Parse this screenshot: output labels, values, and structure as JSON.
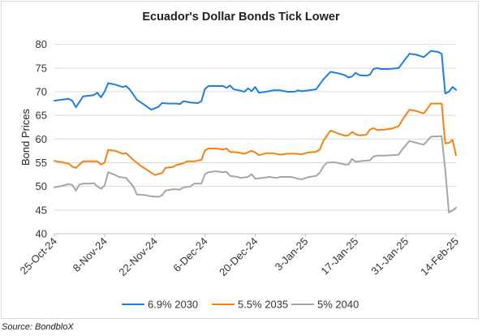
{
  "chart_data": {
    "type": "line",
    "title": "Ecuador's Dollar Bonds Tick Lower",
    "xlabel": "",
    "ylabel": "Bond Prices",
    "ylim": [
      40,
      82
    ],
    "yticks": [
      40,
      45,
      50,
      55,
      60,
      65,
      70,
      75,
      80
    ],
    "xlim": [
      "2024-10-25",
      "2025-02-14"
    ],
    "xticks": [
      "25-Oct-24",
      "8-Nov-24",
      "22-Nov-24",
      "6-Dec-24",
      "20-Dec-24",
      "3-Jan-25",
      "17-Jan-25",
      "31-Jan-25",
      "14-Feb-25"
    ],
    "grid": true,
    "legend": "bottom",
    "series": [
      {
        "name": "6.9% 2030",
        "color": "#1f7fe0",
        "points": [
          [
            "2024-10-25",
            68.1
          ],
          [
            "2024-10-27",
            68.3
          ],
          [
            "2024-10-29",
            68.5
          ],
          [
            "2024-10-30",
            68.1
          ],
          [
            "2024-10-31",
            66.7
          ],
          [
            "2024-11-02",
            69.0
          ],
          [
            "2024-11-04",
            69.2
          ],
          [
            "2024-11-05",
            69.3
          ],
          [
            "2024-11-06",
            69.8
          ],
          [
            "2024-11-07",
            68.8
          ],
          [
            "2024-11-08",
            70.0
          ],
          [
            "2024-11-09",
            71.8
          ],
          [
            "2024-11-11",
            71.5
          ],
          [
            "2024-11-13",
            71.0
          ],
          [
            "2024-11-14",
            71.2
          ],
          [
            "2024-11-15",
            70.5
          ],
          [
            "2024-11-17",
            68.3
          ],
          [
            "2024-11-19",
            67.3
          ],
          [
            "2024-11-21",
            66.2
          ],
          [
            "2024-11-23",
            66.8
          ],
          [
            "2024-11-24",
            67.6
          ],
          [
            "2024-11-26",
            67.5
          ],
          [
            "2024-11-28",
            67.5
          ],
          [
            "2024-11-29",
            67.4
          ],
          [
            "2024-11-30",
            68.0
          ],
          [
            "2024-12-02",
            67.7
          ],
          [
            "2024-12-04",
            67.6
          ],
          [
            "2024-12-05",
            68.0
          ],
          [
            "2024-12-06",
            70.6
          ],
          [
            "2024-12-07",
            71.2
          ],
          [
            "2024-12-09",
            71.2
          ],
          [
            "2024-12-11",
            71.2
          ],
          [
            "2024-12-12",
            70.8
          ],
          [
            "2024-12-13",
            71.3
          ],
          [
            "2024-12-14",
            70.5
          ],
          [
            "2024-12-16",
            70.2
          ],
          [
            "2024-12-17",
            70.0
          ],
          [
            "2024-12-18",
            70.7
          ],
          [
            "2024-12-19",
            70.1
          ],
          [
            "2024-12-20",
            71.0
          ],
          [
            "2024-12-21",
            69.8
          ],
          [
            "2024-12-23",
            70.0
          ],
          [
            "2024-12-25",
            70.3
          ],
          [
            "2024-12-27",
            70.3
          ],
          [
            "2024-12-29",
            70.0
          ],
          [
            "2024-12-31",
            70.0
          ],
          [
            "2025-01-01",
            70.3
          ],
          [
            "2025-01-02",
            70.1
          ],
          [
            "2025-01-04",
            70.3
          ],
          [
            "2025-01-06",
            70.5
          ],
          [
            "2025-01-08",
            72.6
          ],
          [
            "2025-01-10",
            74.2
          ],
          [
            "2025-01-12",
            73.9
          ],
          [
            "2025-01-14",
            73.5
          ],
          [
            "2025-01-15",
            73.0
          ],
          [
            "2025-01-16",
            73.2
          ],
          [
            "2025-01-17",
            74.0
          ],
          [
            "2025-01-18",
            73.5
          ],
          [
            "2025-01-20",
            73.4
          ],
          [
            "2025-01-21",
            73.6
          ],
          [
            "2025-01-22",
            74.8
          ],
          [
            "2025-01-23",
            75.0
          ],
          [
            "2025-01-24",
            74.8
          ],
          [
            "2025-01-26",
            74.8
          ],
          [
            "2025-01-28",
            74.9
          ],
          [
            "2025-01-29",
            75.0
          ],
          [
            "2025-01-30",
            76.0
          ],
          [
            "2025-02-01",
            78.0
          ],
          [
            "2025-02-03",
            77.8
          ],
          [
            "2025-02-05",
            77.3
          ],
          [
            "2025-02-07",
            78.6
          ],
          [
            "2025-02-09",
            78.4
          ],
          [
            "2025-02-10",
            78.0
          ],
          [
            "2025-02-11",
            69.6
          ],
          [
            "2025-02-12",
            70.0
          ],
          [
            "2025-02-13",
            71.0
          ],
          [
            "2025-02-14",
            70.4
          ]
        ]
      },
      {
        "name": "5.5% 2035",
        "color": "#f5820f",
        "points": [
          [
            "2024-10-25",
            55.4
          ],
          [
            "2024-10-27",
            55.1
          ],
          [
            "2024-10-29",
            54.8
          ],
          [
            "2024-10-30",
            54.2
          ],
          [
            "2024-10-31",
            53.9
          ],
          [
            "2024-11-01",
            54.6
          ],
          [
            "2024-11-02",
            55.3
          ],
          [
            "2024-11-04",
            55.3
          ],
          [
            "2024-11-06",
            55.3
          ],
          [
            "2024-11-07",
            54.6
          ],
          [
            "2024-11-08",
            55.0
          ],
          [
            "2024-11-09",
            57.7
          ],
          [
            "2024-11-11",
            57.5
          ],
          [
            "2024-11-13",
            56.9
          ],
          [
            "2024-11-14",
            57.0
          ],
          [
            "2024-11-16",
            55.6
          ],
          [
            "2024-11-18",
            54.4
          ],
          [
            "2024-11-20",
            53.4
          ],
          [
            "2024-11-22",
            52.4
          ],
          [
            "2024-11-23",
            52.6
          ],
          [
            "2024-11-24",
            52.8
          ],
          [
            "2024-11-25",
            53.9
          ],
          [
            "2024-11-27",
            54.1
          ],
          [
            "2024-11-28",
            54.5
          ],
          [
            "2024-11-30",
            54.9
          ],
          [
            "2024-12-01",
            55.3
          ],
          [
            "2024-12-03",
            55.3
          ],
          [
            "2024-12-05",
            55.6
          ],
          [
            "2024-12-06",
            57.6
          ],
          [
            "2024-12-07",
            58.0
          ],
          [
            "2024-12-09",
            58.0
          ],
          [
            "2024-12-11",
            57.8
          ],
          [
            "2024-12-12",
            58.0
          ],
          [
            "2024-12-13",
            57.3
          ],
          [
            "2024-12-15",
            57.2
          ],
          [
            "2024-12-17",
            56.9
          ],
          [
            "2024-12-19",
            57.5
          ],
          [
            "2024-12-20",
            57.2
          ],
          [
            "2024-12-21",
            56.6
          ],
          [
            "2024-12-23",
            57.0
          ],
          [
            "2024-12-25",
            57.0
          ],
          [
            "2024-12-27",
            56.7
          ],
          [
            "2024-12-29",
            56.9
          ],
          [
            "2024-12-31",
            56.9
          ],
          [
            "2025-01-02",
            56.8
          ],
          [
            "2025-01-04",
            57.2
          ],
          [
            "2025-01-06",
            57.3
          ],
          [
            "2025-01-07",
            57.8
          ],
          [
            "2025-01-08",
            59.6
          ],
          [
            "2025-01-10",
            61.8
          ],
          [
            "2025-01-12",
            61.2
          ],
          [
            "2025-01-14",
            60.7
          ],
          [
            "2025-01-15",
            60.8
          ],
          [
            "2025-01-16",
            61.5
          ],
          [
            "2025-01-17",
            61.0
          ],
          [
            "2025-01-18",
            60.8
          ],
          [
            "2025-01-20",
            60.9
          ],
          [
            "2025-01-21",
            62.0
          ],
          [
            "2025-01-22",
            62.3
          ],
          [
            "2025-01-23",
            61.9
          ],
          [
            "2025-01-25",
            62.0
          ],
          [
            "2025-01-27",
            62.2
          ],
          [
            "2025-01-29",
            62.7
          ],
          [
            "2025-01-30",
            64.0
          ],
          [
            "2025-02-01",
            66.2
          ],
          [
            "2025-02-03",
            65.9
          ],
          [
            "2025-02-05",
            65.4
          ],
          [
            "2025-02-07",
            67.5
          ],
          [
            "2025-02-10",
            67.5
          ],
          [
            "2025-02-11",
            59.1
          ],
          [
            "2025-02-12",
            59.2
          ],
          [
            "2025-02-13",
            59.8
          ],
          [
            "2025-02-14",
            56.6
          ]
        ]
      },
      {
        "name": "5% 2040",
        "color": "#a6a6a6",
        "points": [
          [
            "2024-10-25",
            49.8
          ],
          [
            "2024-10-27",
            50.1
          ],
          [
            "2024-10-29",
            50.5
          ],
          [
            "2024-10-30",
            50.3
          ],
          [
            "2024-10-31",
            49.1
          ],
          [
            "2024-11-01",
            50.4
          ],
          [
            "2024-11-02",
            50.6
          ],
          [
            "2024-11-04",
            50.6
          ],
          [
            "2024-11-05",
            50.7
          ],
          [
            "2024-11-06",
            50.0
          ],
          [
            "2024-11-07",
            49.5
          ],
          [
            "2024-11-08",
            50.2
          ],
          [
            "2024-11-09",
            53.0
          ],
          [
            "2024-11-11",
            52.4
          ],
          [
            "2024-11-12",
            52.0
          ],
          [
            "2024-11-14",
            51.8
          ],
          [
            "2024-11-16",
            50.0
          ],
          [
            "2024-11-17",
            48.3
          ],
          [
            "2024-11-19",
            48.2
          ],
          [
            "2024-11-21",
            47.9
          ],
          [
            "2024-11-23",
            47.8
          ],
          [
            "2024-11-24",
            48.1
          ],
          [
            "2024-11-25",
            49.1
          ],
          [
            "2024-11-27",
            49.4
          ],
          [
            "2024-11-28",
            49.4
          ],
          [
            "2024-11-29",
            49.3
          ],
          [
            "2024-11-30",
            49.8
          ],
          [
            "2024-12-02",
            50.0
          ],
          [
            "2024-12-03",
            50.6
          ],
          [
            "2024-12-05",
            50.6
          ],
          [
            "2024-12-06",
            52.6
          ],
          [
            "2024-12-07",
            53.0
          ],
          [
            "2024-12-09",
            53.2
          ],
          [
            "2024-12-11",
            53.0
          ],
          [
            "2024-12-12",
            53.1
          ],
          [
            "2024-12-13",
            52.2
          ],
          [
            "2024-12-15",
            52.0
          ],
          [
            "2024-12-16",
            51.8
          ],
          [
            "2024-12-18",
            52.0
          ],
          [
            "2024-12-19",
            52.6
          ],
          [
            "2024-12-20",
            51.6
          ],
          [
            "2024-12-22",
            51.8
          ],
          [
            "2024-12-24",
            52.0
          ],
          [
            "2024-12-26",
            51.8
          ],
          [
            "2024-12-27",
            52.0
          ],
          [
            "2024-12-29",
            52.0
          ],
          [
            "2024-12-30",
            52.0
          ],
          [
            "2025-01-01",
            51.6
          ],
          [
            "2025-01-02",
            51.5
          ],
          [
            "2025-01-04",
            52.0
          ],
          [
            "2025-01-06",
            52.2
          ],
          [
            "2025-01-07",
            52.9
          ],
          [
            "2025-01-08",
            54.2
          ],
          [
            "2025-01-09",
            55.0
          ],
          [
            "2025-01-11",
            55.1
          ],
          [
            "2025-01-13",
            54.8
          ],
          [
            "2025-01-14",
            54.6
          ],
          [
            "2025-01-15",
            54.6
          ],
          [
            "2025-01-16",
            55.8
          ],
          [
            "2025-01-17",
            55.2
          ],
          [
            "2025-01-19",
            55.4
          ],
          [
            "2025-01-21",
            55.5
          ],
          [
            "2025-01-22",
            56.3
          ],
          [
            "2025-01-23",
            56.5
          ],
          [
            "2025-01-25",
            56.5
          ],
          [
            "2025-01-27",
            56.6
          ],
          [
            "2025-01-29",
            56.7
          ],
          [
            "2025-01-30",
            57.8
          ],
          [
            "2025-02-01",
            59.6
          ],
          [
            "2025-02-03",
            59.2
          ],
          [
            "2025-02-05",
            58.8
          ],
          [
            "2025-02-07",
            60.5
          ],
          [
            "2025-02-10",
            60.6
          ],
          [
            "2025-02-11",
            53.5
          ],
          [
            "2025-02-12",
            44.5
          ],
          [
            "2025-02-13",
            44.9
          ],
          [
            "2025-02-14",
            45.5
          ]
        ]
      }
    ]
  },
  "source": "Source: BondbloX"
}
